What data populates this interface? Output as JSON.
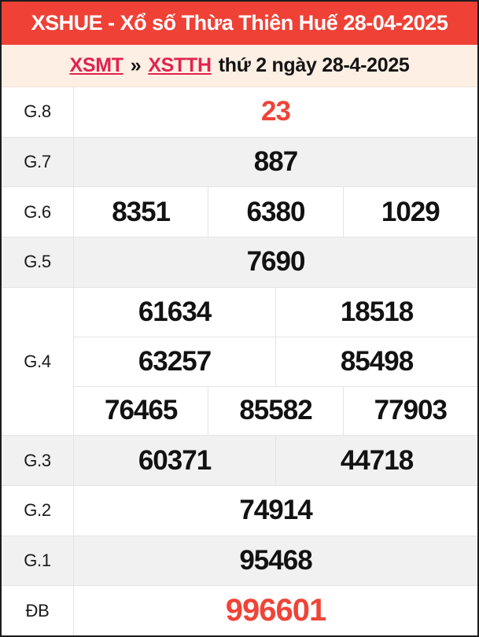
{
  "header": {
    "title": "XSHUE - Xổ số Thừa Thiên Huế 28-04-2025"
  },
  "breadcrumb": {
    "region_link": "XSMT",
    "separator": "»",
    "province_link": "XSTTH",
    "date_text": "thứ 2 ngày 28-4-2025"
  },
  "colors": {
    "header_bg": "#ef4136",
    "breadcrumb_bg": "#fdefe4",
    "link_red": "#e0234e",
    "number_red": "#ef4438",
    "shaded_row_bg": "#f1f1f1"
  },
  "table": {
    "rows": [
      {
        "id": "g8",
        "label": "G.8",
        "highlight": true,
        "shaded": false,
        "special": false,
        "lines": [
          [
            "23"
          ]
        ]
      },
      {
        "id": "g7",
        "label": "G.7",
        "highlight": false,
        "shaded": true,
        "special": false,
        "lines": [
          [
            "887"
          ]
        ]
      },
      {
        "id": "g6",
        "label": "G.6",
        "highlight": false,
        "shaded": false,
        "special": false,
        "lines": [
          [
            "8351",
            "6380",
            "1029"
          ]
        ]
      },
      {
        "id": "g5",
        "label": "G.5",
        "highlight": false,
        "shaded": true,
        "special": false,
        "lines": [
          [
            "7690"
          ]
        ]
      },
      {
        "id": "g4",
        "label": "G.4",
        "highlight": false,
        "shaded": false,
        "special": false,
        "lines": [
          [
            "61634",
            "18518"
          ],
          [
            "63257",
            "85498"
          ],
          [
            "76465",
            "85582",
            "77903"
          ]
        ]
      },
      {
        "id": "g3",
        "label": "G.3",
        "highlight": false,
        "shaded": true,
        "special": false,
        "lines": [
          [
            "60371",
            "44718"
          ]
        ]
      },
      {
        "id": "g2",
        "label": "G.2",
        "highlight": false,
        "shaded": false,
        "special": false,
        "lines": [
          [
            "74914"
          ]
        ]
      },
      {
        "id": "g1",
        "label": "G.1",
        "highlight": false,
        "shaded": true,
        "special": false,
        "lines": [
          [
            "95468"
          ]
        ]
      },
      {
        "id": "db",
        "label": "ĐB",
        "highlight": true,
        "shaded": false,
        "special": true,
        "lines": [
          [
            "996601"
          ]
        ]
      }
    ]
  }
}
